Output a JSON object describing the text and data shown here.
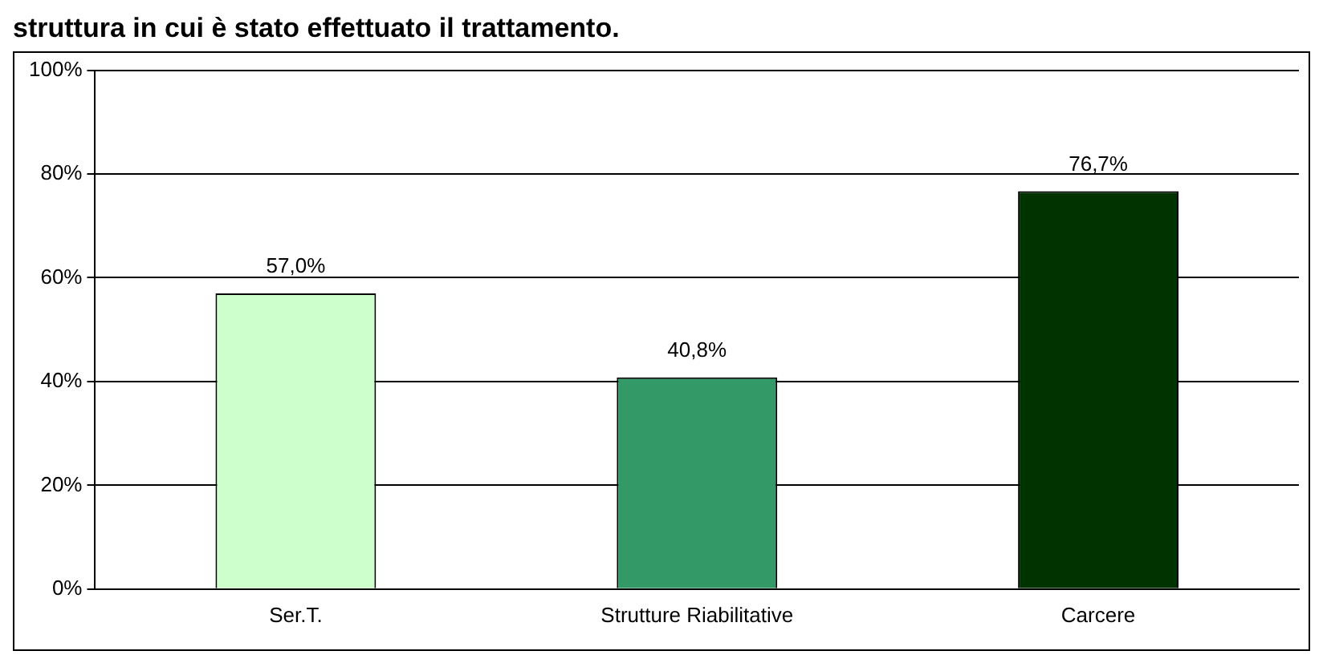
{
  "chart_data": {
    "type": "bar",
    "title": "struttura in cui è stato effettuato il trattamento.",
    "categories": [
      "Ser.T.",
      "Strutture Riabilitative",
      "Carcere"
    ],
    "values": [
      57.0,
      40.8,
      76.7
    ],
    "colors": [
      "#ccffcc",
      "#339966",
      "#003300"
    ],
    "value_labels": [
      "57,0%",
      "40,8%",
      "76,7%"
    ],
    "ylim": [
      0,
      100
    ],
    "yticks": [
      {
        "value": 0,
        "label": "0%"
      },
      {
        "value": 20,
        "label": "20%"
      },
      {
        "value": 40,
        "label": "40%"
      },
      {
        "value": 60,
        "label": "60%"
      },
      {
        "value": 80,
        "label": "80%"
      },
      {
        "value": 100,
        "label": "100%"
      }
    ],
    "grid": "y",
    "legend": false
  }
}
